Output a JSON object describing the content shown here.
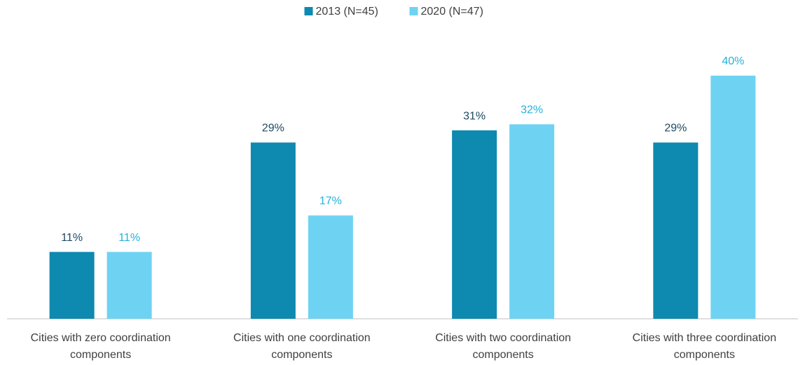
{
  "chart_data": {
    "type": "bar",
    "categories": [
      "Cities with zero coordination components",
      "Cities with one coordination components",
      "Cities with two coordination components",
      "Cities with three coordination components"
    ],
    "series": [
      {
        "name": "2013 (N=45)",
        "color": "#0e89b0",
        "values": [
          11,
          29,
          31,
          29
        ],
        "value_labels": [
          "11%",
          "29%",
          "31%",
          "29%"
        ]
      },
      {
        "name": "2020 (N=47)",
        "color": "#6ed3f2",
        "values": [
          11,
          17,
          32,
          40
        ],
        "value_labels": [
          "11%",
          "17%",
          "32%",
          "40%"
        ]
      }
    ],
    "legend": "top"
  }
}
